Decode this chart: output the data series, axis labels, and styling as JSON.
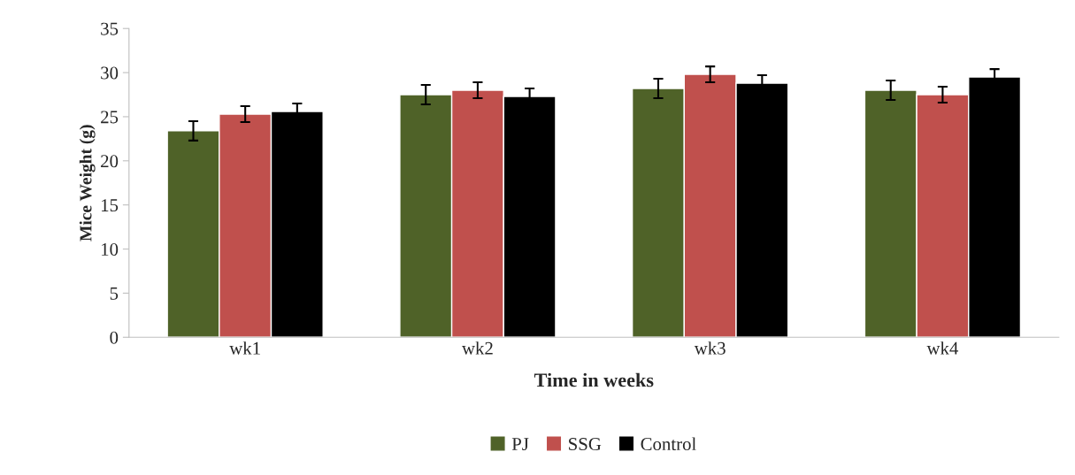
{
  "chart_data": {
    "type": "bar",
    "xlabel": "Time in weeks",
    "ylabel": "Mice Weight (g)",
    "categories": [
      "wk1",
      "wk2",
      "wk3",
      "wk4"
    ],
    "series": [
      {
        "name": "PJ",
        "color": "#4f6228",
        "values": [
          23.4,
          27.5,
          28.2,
          28.0
        ],
        "errors": [
          1.1,
          1.1,
          1.1,
          1.1
        ]
      },
      {
        "name": "SSG",
        "color": "#c0504d",
        "values": [
          25.3,
          28.0,
          29.8,
          27.5
        ],
        "errors": [
          0.9,
          0.9,
          0.9,
          0.9
        ]
      },
      {
        "name": "Control",
        "color": "#000000",
        "values": [
          25.6,
          27.3,
          28.8,
          29.5
        ],
        "errors": [
          0.9,
          0.9,
          0.9,
          0.9
        ]
      }
    ],
    "ylim": [
      0,
      35
    ],
    "yticks": [
      0,
      5,
      10,
      15,
      20,
      25,
      30,
      35
    ],
    "grid": false,
    "legend": "bottom"
  }
}
